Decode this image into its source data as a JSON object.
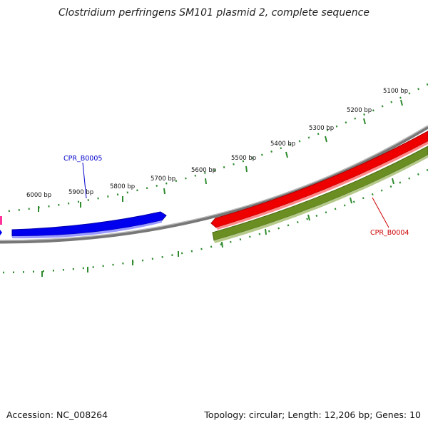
{
  "title": "Clostridium perfringens SM101 plasmid 2, complete sequence",
  "footer": {
    "accession": "Accession: NC_008264",
    "summary": "Topology: circular; Length: 12,206 bp; Genes: 10"
  },
  "colors": {
    "backbone": "#888888",
    "ticks": "#2e8b2e",
    "forward_gene": "#0000ff",
    "reverse_gene": "#ff0000",
    "cds": "#6b8e23",
    "pink_gene": "#ff3399"
  },
  "scale": {
    "tick_labels": [
      "5100 bp",
      "5200 bp",
      "5300 bp",
      "5400 bp",
      "5500 bp",
      "5600 bp",
      "5700 bp",
      "5800 bp",
      "5900 bp",
      "6000 bp"
    ]
  },
  "genes": [
    {
      "label": "CPR_B0005",
      "color": "#0000cc"
    },
    {
      "label": "CPR_B0004",
      "color": "#cc0000"
    }
  ]
}
